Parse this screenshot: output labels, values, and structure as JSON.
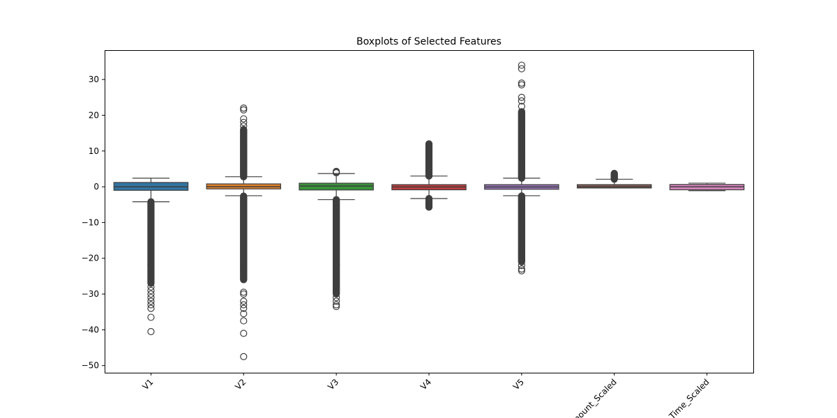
{
  "chart_data": {
    "type": "boxplot",
    "title": "Boxplots of Selected Features",
    "xlabel": "",
    "ylabel": "",
    "ylim": [
      -52,
      38.2
    ],
    "yticks": [
      30,
      20,
      10,
      0,
      -10,
      -20,
      -30,
      -40,
      -50
    ],
    "ytick_labels": [
      "30",
      "20",
      "10",
      "0",
      "−10",
      "−20",
      "−30",
      "−40",
      "−50"
    ],
    "grid": false,
    "categories": [
      "V1",
      "V2",
      "V3",
      "V4",
      "V5",
      "Amount_Scaled",
      "Time_Scaled"
    ],
    "series": [
      {
        "category": "V1",
        "color": "#3274a1",
        "whisker_low": -4.2,
        "q1": -1.0,
        "median": 0.0,
        "q3": 1.2,
        "whisker_high": 2.4,
        "outlier_dense_ranges": [
          [
            -27,
            -4.2
          ]
        ],
        "outliers": [
          -28,
          -29,
          -30,
          -31,
          -32,
          -33,
          -34,
          -36.5,
          -40.5
        ]
      },
      {
        "category": "V2",
        "color": "#e1812c",
        "whisker_low": -2.5,
        "q1": -0.6,
        "median": 0.05,
        "q3": 0.8,
        "whisker_high": 2.8,
        "outlier_dense_ranges": [
          [
            2.8,
            16
          ],
          [
            -26,
            -2.5
          ]
        ],
        "outliers": [
          17,
          18,
          19,
          21.5,
          22,
          -29.5,
          -30,
          -32,
          -33,
          -34,
          -35.5,
          -37.5,
          -41,
          -47.5
        ]
      },
      {
        "category": "V3",
        "color": "#3a923a",
        "whisker_low": -3.6,
        "q1": -0.9,
        "median": 0.2,
        "q3": 1.0,
        "whisker_high": 3.7,
        "outlier_dense_ranges": [
          [
            -30,
            -3.6
          ]
        ],
        "outliers": [
          3.9,
          4.1,
          4.3,
          -31,
          -32,
          -33,
          -33.5
        ]
      },
      {
        "category": "V4",
        "color": "#c03d3e",
        "whisker_low": -3.3,
        "q1": -0.85,
        "median": -0.05,
        "q3": 0.6,
        "whisker_high": 3.0,
        "outlier_dense_ranges": [
          [
            3.0,
            12
          ],
          [
            -5.7,
            -3.3
          ]
        ],
        "outliers": []
      },
      {
        "category": "V5",
        "color": "#9372b2",
        "whisker_low": -2.5,
        "q1": -0.7,
        "median": -0.05,
        "q3": 0.6,
        "whisker_high": 2.4,
        "outlier_dense_ranges": [
          [
            2.4,
            21
          ],
          [
            -21,
            -2.5
          ]
        ],
        "outliers": [
          22.5,
          24,
          25,
          28.5,
          29,
          33,
          34,
          -22,
          -23,
          -23.5
        ]
      },
      {
        "category": "Amount_Scaled",
        "color": "#845b53",
        "whisker_low": -0.35,
        "q1": -0.35,
        "median": 0.0,
        "q3": 0.6,
        "whisker_high": 2.1,
        "outlier_dense_ranges": [
          [
            2.1,
            3.8
          ]
        ],
        "outliers": []
      },
      {
        "category": "Time_Scaled",
        "color": "#d684bd",
        "whisker_low": -1.1,
        "q1": -0.85,
        "median": 0.0,
        "q3": 0.65,
        "whisker_high": 1.0,
        "outlier_dense_ranges": [],
        "outliers": []
      }
    ]
  }
}
